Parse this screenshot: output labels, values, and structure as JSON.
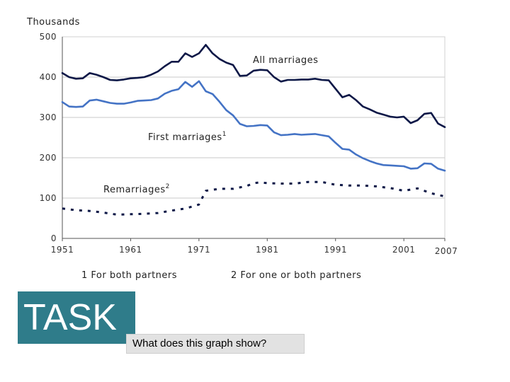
{
  "chart_data": {
    "type": "line",
    "unit_label": "Thousands",
    "x_ticks": [
      "1951",
      "1961",
      "1971",
      "1981",
      "1991",
      "2001",
      "2007"
    ],
    "y_ticks": [
      "500",
      "400",
      "300",
      "200",
      "100",
      "0"
    ],
    "xlim": [
      1951,
      2007
    ],
    "ylim": [
      0,
      500
    ],
    "grid": true,
    "series": [
      {
        "name": "All marriages",
        "style": "solid",
        "color": "#0d1847",
        "x": [
          1951,
          1952,
          1953,
          1954,
          1955,
          1956,
          1957,
          1958,
          1959,
          1960,
          1961,
          1962,
          1963,
          1964,
          1965,
          1966,
          1967,
          1968,
          1969,
          1970,
          1971,
          1972,
          1973,
          1974,
          1975,
          1976,
          1977,
          1978,
          1979,
          1980,
          1981,
          1982,
          1983,
          1984,
          1985,
          1986,
          1987,
          1988,
          1989,
          1990,
          1991,
          1992,
          1993,
          1994,
          1995,
          1996,
          1997,
          1998,
          1999,
          2000,
          2001,
          2002,
          2003,
          2004,
          2005,
          2006,
          2007
        ],
        "y": [
          410,
          400,
          396,
          397,
          410,
          406,
          400,
          393,
          392,
          394,
          397,
          398,
          400,
          406,
          414,
          427,
          438,
          438,
          459,
          450,
          459,
          480,
          459,
          445,
          436,
          430,
          403,
          404,
          416,
          418,
          417,
          400,
          389,
          393,
          393,
          394,
          394,
          396,
          393,
          392,
          371,
          350,
          356,
          343,
          327,
          320,
          312,
          307,
          302,
          300,
          302,
          286,
          293,
          309,
          311,
          285,
          276
        ]
      },
      {
        "name": "First marriages",
        "superscript": "1",
        "style": "solid",
        "color": "#4473c5",
        "x": [
          1951,
          1952,
          1953,
          1954,
          1955,
          1956,
          1957,
          1958,
          1959,
          1960,
          1961,
          1962,
          1963,
          1964,
          1965,
          1966,
          1967,
          1968,
          1969,
          1970,
          1971,
          1972,
          1973,
          1974,
          1975,
          1976,
          1977,
          1978,
          1979,
          1980,
          1981,
          1982,
          1983,
          1984,
          1985,
          1986,
          1987,
          1988,
          1989,
          1990,
          1991,
          1992,
          1993,
          1994,
          1995,
          1996,
          1997,
          1998,
          1999,
          2000,
          2001,
          2002,
          2003,
          2004,
          2005,
          2006,
          2007
        ],
        "y": [
          338,
          327,
          326,
          327,
          342,
          344,
          340,
          336,
          334,
          334,
          337,
          341,
          342,
          343,
          347,
          359,
          366,
          370,
          388,
          376,
          390,
          365,
          358,
          339,
          318,
          305,
          284,
          278,
          279,
          281,
          280,
          263,
          256,
          257,
          259,
          257,
          258,
          259,
          256,
          253,
          237,
          222,
          220,
          208,
          199,
          192,
          186,
          182,
          181,
          180,
          179,
          173,
          174,
          186,
          185,
          173,
          168
        ]
      },
      {
        "name": "Remarriages",
        "superscript": "2",
        "style": "dashed",
        "color": "#0d1847",
        "x": [
          1951,
          1953,
          1955,
          1957,
          1959,
          1961,
          1963,
          1965,
          1967,
          1969,
          1970,
          1971,
          1972,
          1974,
          1976,
          1978,
          1979,
          1980,
          1981,
          1983,
          1985,
          1987,
          1989,
          1991,
          1993,
          1995,
          1997,
          1999,
          2001,
          2003,
          2005,
          2007
        ],
        "y": [
          74,
          70,
          68,
          64,
          59,
          60,
          61,
          63,
          69,
          74,
          79,
          84,
          118,
          123,
          123,
          130,
          137,
          139,
          137,
          136,
          136,
          140,
          140,
          133,
          131,
          131,
          129,
          125,
          118,
          124,
          112,
          104
        ]
      }
    ],
    "footnotes": [
      "1 For both partners",
      "2 For one or both partners"
    ]
  },
  "task": {
    "label": "TASK",
    "question": "What does this graph show?"
  }
}
